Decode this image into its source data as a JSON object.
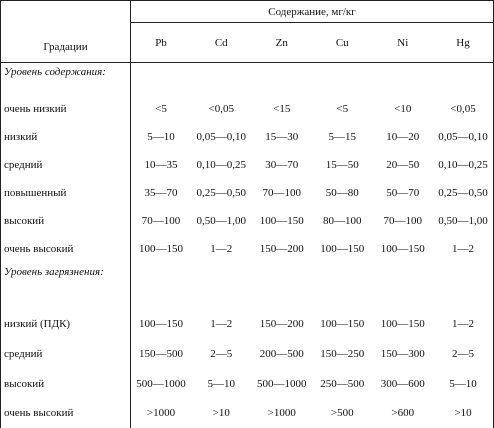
{
  "header": {
    "gradations": "Градации",
    "content": "Содержание, мг/кг",
    "elements": [
      "Pb",
      "Cd",
      "Zn",
      "Cu",
      "Ni",
      "Hg"
    ]
  },
  "sections": [
    {
      "title": "Уровень содержания:",
      "rows": [
        {
          "label": "очень низкий",
          "values": [
            "<5",
            "<0,05",
            "<15",
            "<5",
            "<10",
            "<0,05"
          ]
        },
        {
          "label": "низкий",
          "values": [
            "5—10",
            "0,05—0,10",
            "15—30",
            "5—15",
            "10—20",
            "0,05—0,10"
          ]
        },
        {
          "label": "средний",
          "values": [
            "10—35",
            "0,10—0,25",
            "30—70",
            "15—50",
            "20—50",
            "0,10—0,25"
          ]
        },
        {
          "label": "повышенный",
          "values": [
            "35—70",
            "0,25—0,50",
            "70—100",
            "50—80",
            "50—70",
            "0,25—0,50"
          ]
        },
        {
          "label": "высокий",
          "values": [
            "70—100",
            "0,50—1,00",
            "100—150",
            "80—100",
            "70—100",
            "0,50—1,00"
          ]
        },
        {
          "label": "очень высокий",
          "values": [
            "100—150",
            "1—2",
            "150—200",
            "100—150",
            "100—150",
            "1—2"
          ]
        }
      ]
    },
    {
      "title": "Уровень загрязнения:",
      "rows": [
        {
          "label": "низкий (ПДК)",
          "values": [
            "100—150",
            "1—2",
            "150—200",
            "100—150",
            "100—150",
            "1—2"
          ]
        },
        {
          "label": "средний",
          "values": [
            "150—500",
            "2—5",
            "200—500",
            "150—250",
            "150—300",
            "2—5"
          ]
        },
        {
          "label": "высокий",
          "values": [
            "500—1000",
            "5—10",
            "500—1000",
            "250—500",
            "300—600",
            "5—10"
          ]
        },
        {
          "label": "очень высокий",
          "values": [
            ">1000",
            ">10",
            ">1000",
            ">500",
            ">600",
            ">10"
          ]
        }
      ]
    }
  ]
}
